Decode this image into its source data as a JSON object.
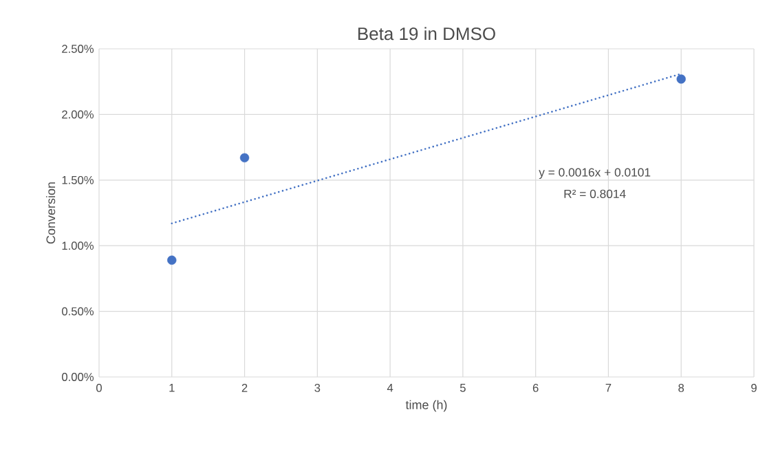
{
  "chart_data": {
    "type": "scatter",
    "title": "Beta 19 in DMSO",
    "xlabel": "time (h)",
    "ylabel": "Conversion",
    "x": [
      1,
      2,
      8
    ],
    "series": [
      {
        "color": "#4472c4",
        "values": [
          0.0089,
          0.0167,
          0.0227
        ],
        "marker": "circle"
      },
      {
        "type": "line",
        "color": "#4472c4",
        "x": [
          1,
          8
        ],
        "values": [
          0.0117,
          0.0231
        ],
        "line_style": "dotted",
        "marker": "none"
      }
    ],
    "xlim": [
      0,
      9
    ],
    "xticks": [
      0,
      1,
      2,
      3,
      4,
      5,
      6,
      7,
      8,
      9
    ],
    "ylim": [
      0,
      0.025
    ],
    "yticks": [
      {
        "value": 0,
        "label": "0.00%"
      },
      {
        "value": 0.005,
        "label": "0.50%"
      },
      {
        "value": 0.01,
        "label": "1.00%"
      },
      {
        "value": 0.015,
        "label": "1.50%"
      },
      {
        "value": 0.02,
        "label": "2.00%"
      },
      {
        "value": 0.025,
        "label": "2.50%"
      }
    ],
    "grid": true,
    "annotations": [
      "y = 0.0016x + 0.0101",
      "R² = 0.8014"
    ]
  }
}
